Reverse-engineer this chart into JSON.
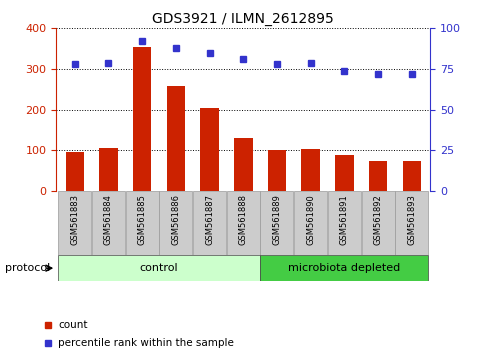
{
  "title": "GDS3921 / ILMN_2612895",
  "samples": [
    "GSM561883",
    "GSM561884",
    "GSM561885",
    "GSM561886",
    "GSM561887",
    "GSM561888",
    "GSM561889",
    "GSM561890",
    "GSM561891",
    "GSM561892",
    "GSM561893"
  ],
  "counts": [
    95,
    105,
    355,
    258,
    205,
    130,
    100,
    103,
    90,
    75,
    75
  ],
  "percentile_ranks": [
    78,
    79,
    92,
    88,
    85,
    81,
    78,
    79,
    74,
    72,
    72
  ],
  "bar_color": "#cc2200",
  "dot_color": "#3333cc",
  "left_ylim": [
    0,
    400
  ],
  "right_ylim": [
    0,
    100
  ],
  "left_yticks": [
    0,
    100,
    200,
    300,
    400
  ],
  "right_yticks": [
    0,
    25,
    50,
    75,
    100
  ],
  "protocol_groups": [
    {
      "label": "control",
      "start": 0,
      "end": 5,
      "color": "#ccffcc"
    },
    {
      "label": "microbiota depleted",
      "start": 6,
      "end": 10,
      "color": "#44cc44"
    }
  ],
  "legend_items": [
    {
      "label": "count",
      "color": "#cc2200"
    },
    {
      "label": "percentile rank within the sample",
      "color": "#3333cc"
    }
  ],
  "protocol_label": "protocol",
  "tick_label_color_left": "#cc2200",
  "tick_label_color_right": "#3333cc",
  "sample_box_color": "#cccccc",
  "sample_box_edge": "#999999"
}
